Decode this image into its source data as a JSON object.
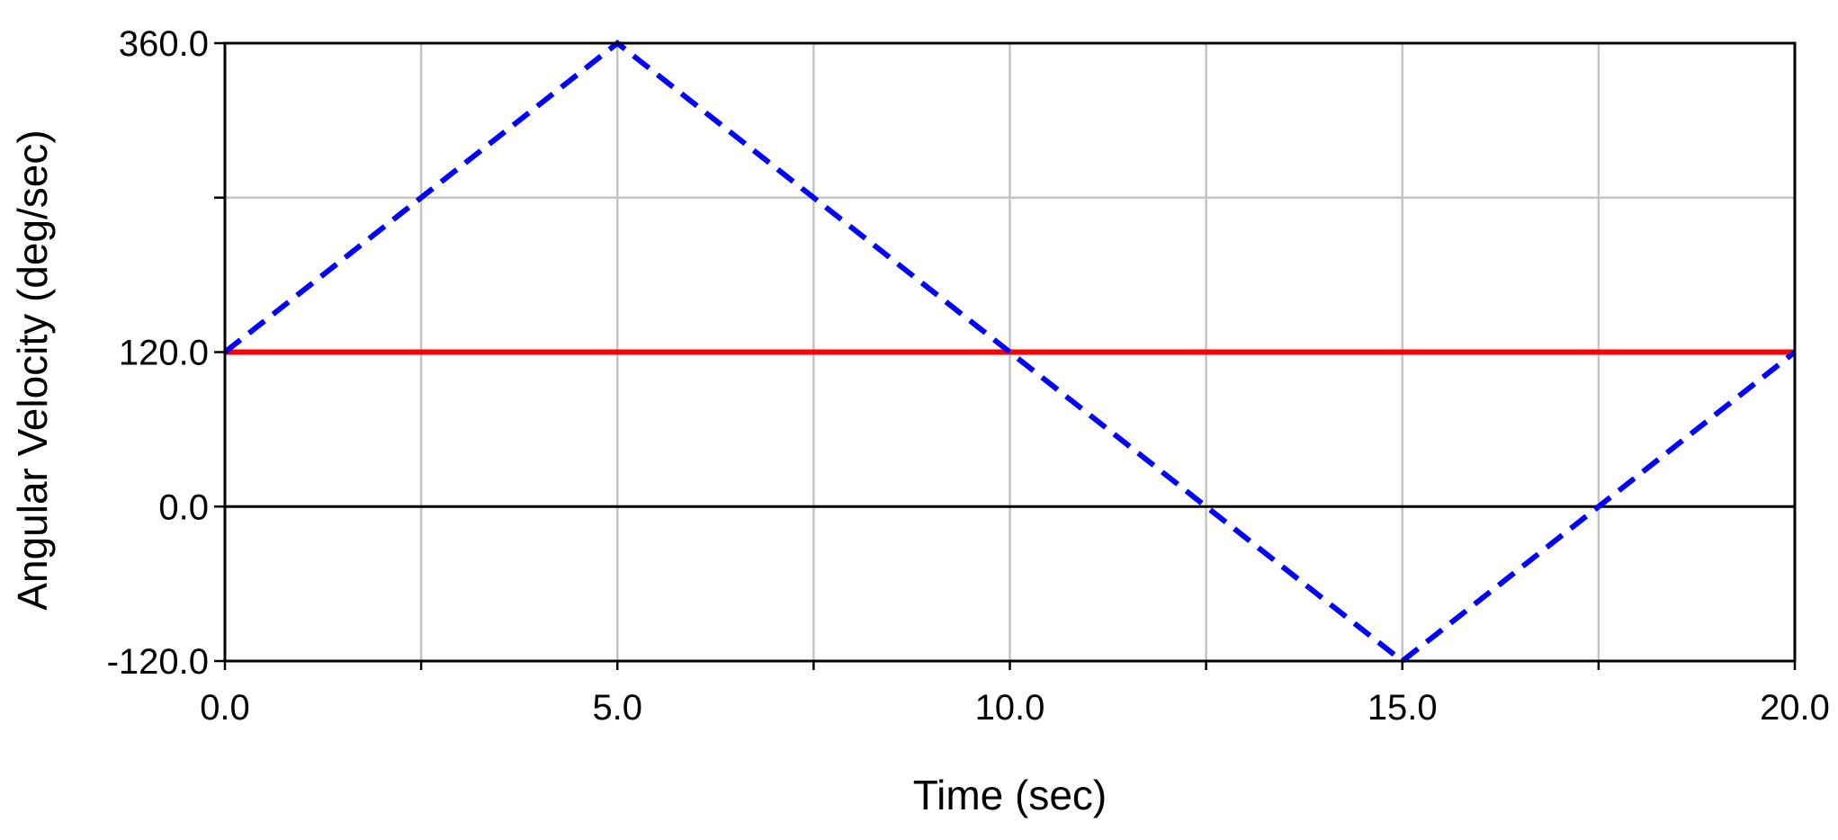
{
  "chart_data": {
    "type": "line",
    "title": "",
    "xlabel": "Time (sec)",
    "ylabel": "Angular Velocity (deg/sec)",
    "xlim": [
      0,
      20
    ],
    "ylim": [
      -120,
      360
    ],
    "x_ticks": [
      0,
      2.5,
      5,
      7.5,
      10,
      12.5,
      15,
      17.5,
      20
    ],
    "x_tick_labels": [
      "0.0",
      "",
      "5.0",
      "",
      "10.0",
      "",
      "15.0",
      "",
      "20.0"
    ],
    "y_ticks": [
      -120,
      0,
      120,
      240,
      360
    ],
    "y_tick_labels": [
      "-120.0",
      "0.0",
      "120.0",
      "",
      "360.0"
    ],
    "grid": true,
    "series": [
      {
        "color": "#0000ff",
        "style": "dashed",
        "x": [
          0,
          5,
          15,
          20
        ],
        "y": [
          120,
          360,
          -120,
          120
        ]
      },
      {
        "color": "#ff0000",
        "style": "solid",
        "x": [
          0,
          20
        ],
        "y": [
          120,
          120
        ]
      }
    ]
  }
}
